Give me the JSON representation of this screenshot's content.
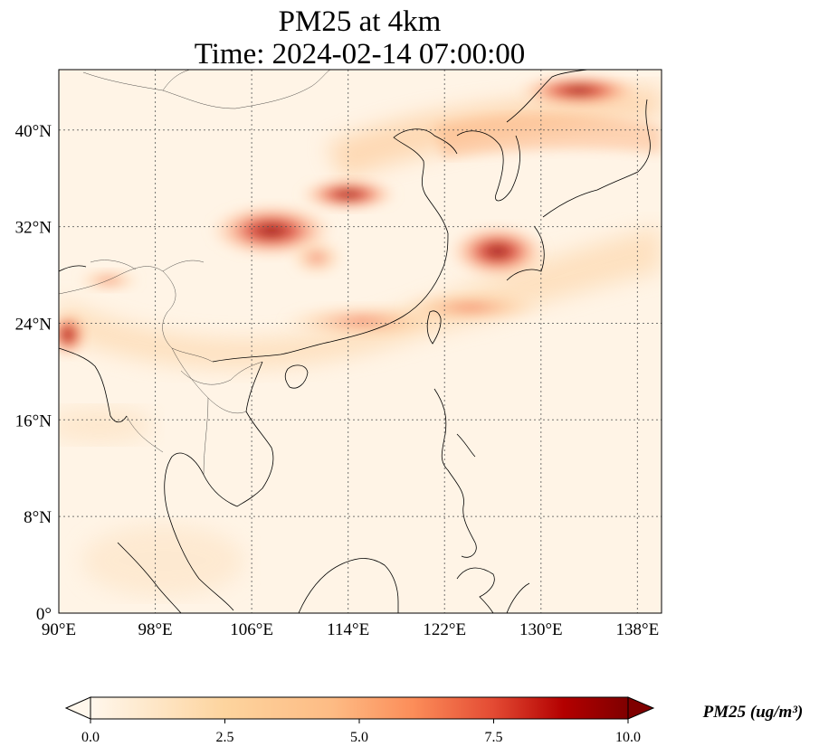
{
  "title": {
    "line1": "PM25 at 4km",
    "line2": "Time: 2024-02-14 07:00:00"
  },
  "map": {
    "extent": {
      "lon_min": 90,
      "lon_max": 140,
      "lat_min": 0,
      "lat_max": 45
    },
    "grid": true,
    "lon_ticks": [
      {
        "lon": 90,
        "label": "90°E"
      },
      {
        "lon": 98,
        "label": "98°E"
      },
      {
        "lon": 106,
        "label": "106°E"
      },
      {
        "lon": 114,
        "label": "114°E"
      },
      {
        "lon": 122,
        "label": "122°E"
      },
      {
        "lon": 130,
        "label": "130°E"
      },
      {
        "lon": 138,
        "label": "138°E"
      }
    ],
    "lat_ticks": [
      {
        "lat": 0,
        "label": "0°"
      },
      {
        "lat": 8,
        "label": "8°N"
      },
      {
        "lat": 16,
        "label": "16°N"
      },
      {
        "lat": 24,
        "label": "24°N"
      },
      {
        "lat": 32,
        "label": "32°N"
      },
      {
        "lat": 40,
        "label": "40°N"
      }
    ],
    "colormap": "OrRd",
    "colors": {
      "low": "#fff7ec",
      "mid": "#fdbb84",
      "high": "#7f0000"
    }
  },
  "colorbar": {
    "ticks": [
      "0.0",
      "2.5",
      "5.0",
      "7.5",
      "10.0"
    ],
    "range": [
      0,
      10
    ],
    "extend": "both",
    "label": "PM25 (ug/m³)"
  }
}
